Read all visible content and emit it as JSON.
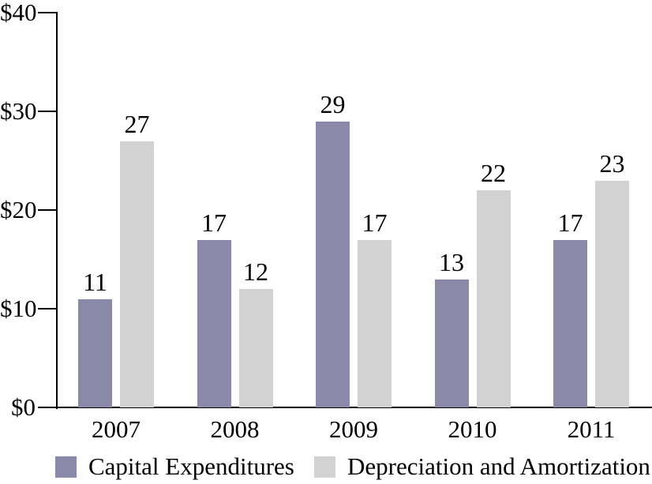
{
  "chart_data": {
    "type": "bar",
    "categories": [
      "2007",
      "2008",
      "2009",
      "2010",
      "2011"
    ],
    "series": [
      {
        "name": "Capital Expenditures",
        "color": "#8a89aa",
        "values": [
          11,
          17,
          29,
          13,
          17
        ]
      },
      {
        "name": "Depreciation and Amortization",
        "color": "#d2d2d2",
        "values": [
          27,
          12,
          17,
          22,
          23
        ]
      }
    ],
    "title": "",
    "xlabel": "",
    "ylabel": "",
    "ylim": [
      0,
      40
    ],
    "ytick_values": [
      0,
      10,
      20,
      30,
      40
    ],
    "ytick_labels": [
      "$0",
      "$10",
      "$20",
      "$30",
      "$40"
    ],
    "grid": false,
    "legend_position": "bottom",
    "bar_value_labels": true
  },
  "colors": {
    "axis": "#000000",
    "text": "#000000",
    "background": "#ffffff"
  }
}
